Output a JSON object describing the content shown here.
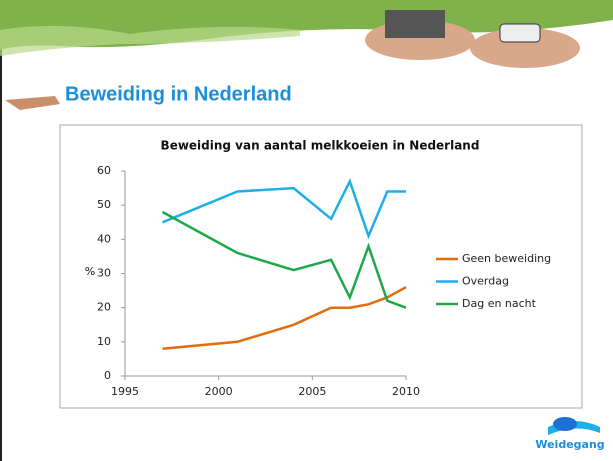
{
  "slide_title": "Beweiding in Nederland",
  "logo_text": "Weidegang",
  "chart_data": {
    "type": "line",
    "title": "Beweiding van aantal melkkoeien in Nederland",
    "y_label": "%",
    "x": [
      1997,
      2001,
      2004,
      2006,
      2007,
      2008,
      2009,
      2010
    ],
    "series": [
      {
        "name": "Geen beweiding",
        "color": "#e46c0a",
        "values": [
          8,
          10,
          15,
          20,
          20,
          21,
          23,
          26
        ]
      },
      {
        "name": "Overdag",
        "color": "#1eaee8",
        "values": [
          45,
          54,
          55,
          46,
          57,
          41,
          54,
          54
        ]
      },
      {
        "name": "Dag en nacht",
        "color": "#1fa84b",
        "values": [
          48,
          36,
          31,
          34,
          23,
          38,
          22,
          20
        ]
      }
    ],
    "xlim": [
      1995,
      2010
    ],
    "xticks": [
      1995,
      2000,
      2005,
      2010
    ],
    "ylim": [
      0,
      60
    ],
    "yticks": [
      0,
      10,
      20,
      30,
      40,
      50,
      60
    ],
    "grid": false,
    "legend": "right"
  }
}
